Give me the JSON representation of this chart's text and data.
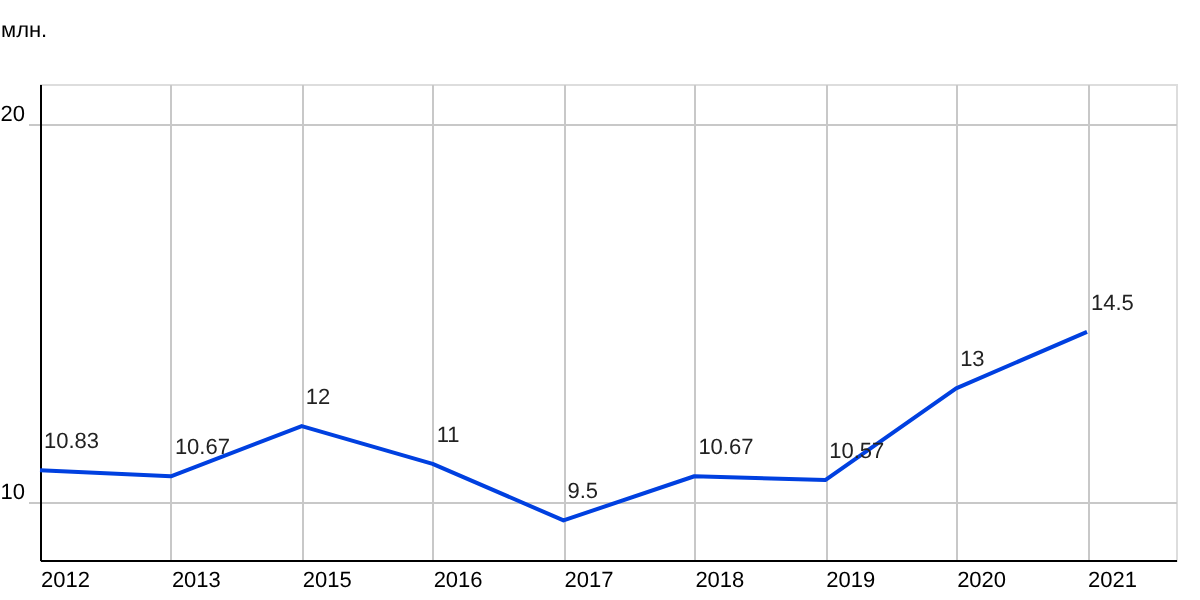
{
  "chart_data": {
    "type": "line",
    "ylabel": "млн.",
    "categories": [
      "2012",
      "2013",
      "2015",
      "2016",
      "2017",
      "2018",
      "2019",
      "2020",
      "2021"
    ],
    "series": [
      {
        "color": "#0040e0",
        "values": [
          10.83,
          10.67,
          12,
          11,
          9.5,
          10.67,
          10.57,
          13,
          14.5
        ]
      }
    ],
    "ylim": [
      8.45,
      21.07
    ],
    "yticks": [
      10,
      20
    ],
    "grid": true,
    "data_labels": true,
    "marker": "none",
    "line_style": "solid"
  }
}
